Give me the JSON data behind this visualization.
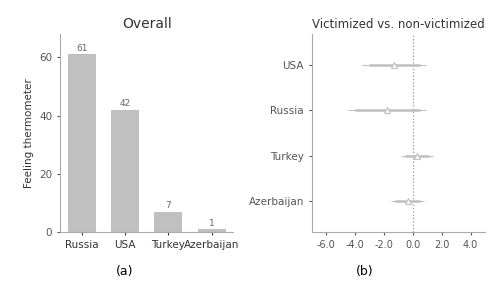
{
  "bar_categories": [
    "Russia",
    "USA",
    "Turkey",
    "Azerbaijan"
  ],
  "bar_values": [
    61,
    42,
    7,
    1
  ],
  "bar_color": "#c0c0c0",
  "bar_title": "Overall",
  "bar_ylabel": "Feeling thermometer",
  "bar_xlabel_a": "(a)",
  "coef_countries": [
    "USA",
    "Russia",
    "Turkey",
    "Azerbaijan"
  ],
  "coef_estimates": [
    -1.3,
    -1.8,
    0.3,
    -0.3
  ],
  "coef_ci90_low": [
    -3.0,
    -4.0,
    -0.5,
    -1.2
  ],
  "coef_ci90_high": [
    0.5,
    0.5,
    1.1,
    0.5
  ],
  "coef_ci95_low": [
    -3.5,
    -4.5,
    -0.8,
    -1.5
  ],
  "coef_ci95_high": [
    0.9,
    0.9,
    1.4,
    0.8
  ],
  "coef_color": "#c0c0c0",
  "coef_title": "Victimized vs. non-victimized",
  "coef_xlabel_b": "(b)",
  "coef_xlim": [
    -7.0,
    5.0
  ],
  "coef_xticks": [
    -6.0,
    -4.0,
    -2.0,
    0.0,
    2.0,
    4.0
  ],
  "marker_style": "^",
  "marker_size": 4,
  "vline_x": 0.0
}
